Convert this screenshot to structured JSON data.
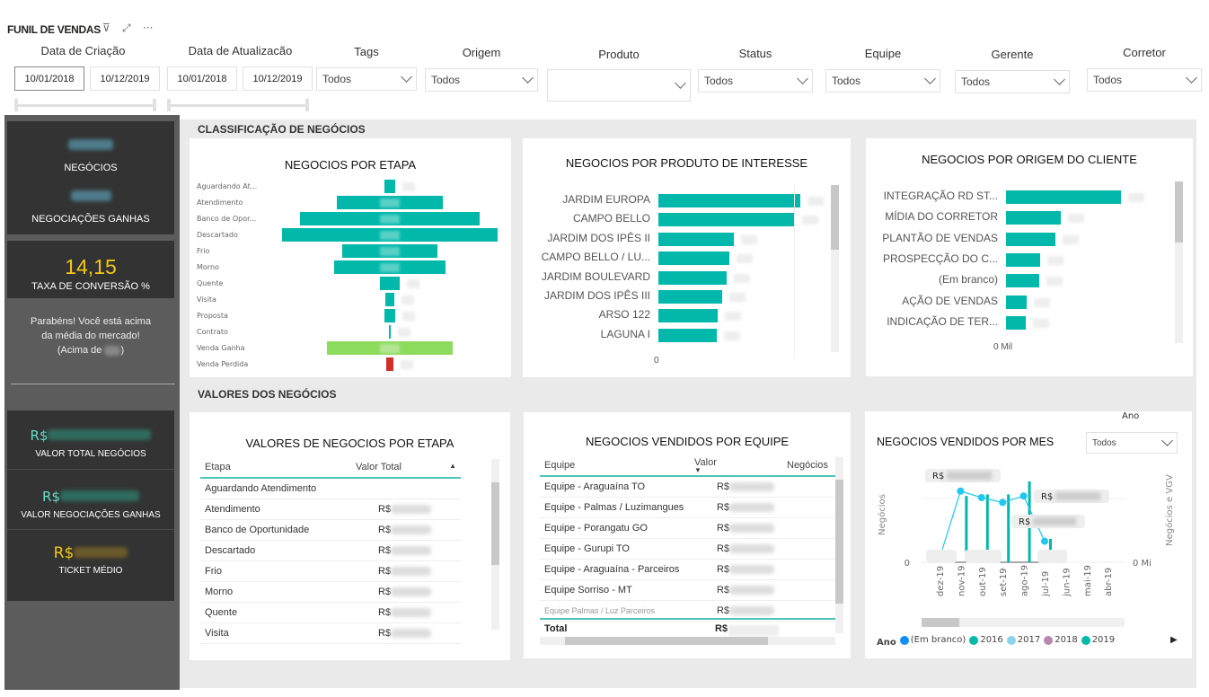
{
  "header": {
    "title": "FUNIL DE VENDAS",
    "icons": [
      "filter-icon",
      "focus-mode-icon",
      "more-options-icon"
    ]
  },
  "filters": {
    "data_criacao": {
      "label": "Data de Criação",
      "start": "10/01/2018",
      "end": "10/12/2019"
    },
    "data_atualizacao": {
      "label": "Data de Atualizacão",
      "start": "10/01/2018",
      "end": "10/12/2019"
    },
    "tags": {
      "label": "Tags",
      "value": "Todos"
    },
    "origem": {
      "label": "Origem",
      "value": "Todos"
    },
    "produto": {
      "label": "Produto",
      "value": ""
    },
    "status": {
      "label": "Status",
      "value": "Todos"
    },
    "equipe": {
      "label": "Equipe",
      "value": "Todos"
    },
    "gerente": {
      "label": "Gerente",
      "value": "Todos"
    },
    "corretor": {
      "label": "Corretor",
      "value": "Todos"
    }
  },
  "kpis": {
    "negocios_label": "NEGÓCIOS",
    "ganhas_label": "NEGOCIAÇÕES GANHAS",
    "taxa_value": "14,15",
    "taxa_label": "TAXA DE CONVERSÃO %",
    "msg_line1": "Parabéns! Você está acima",
    "msg_line2": "da média do mercado!",
    "msg_pre": "(Acima de ",
    "msg_post": ")",
    "currency": "R$",
    "valor_total_label": "VALOR TOTAL NEGÓCIOS",
    "valor_ganhas_label": "VALOR NEGOCIAÇÕES GANHAS",
    "ticket_label": "TICKET MÉDIO",
    "colors": {
      "teal": "#5fe0c8",
      "gold": "#f2c811"
    }
  },
  "sections": {
    "classificacao": "CLASSIFICAÇÃO DE NEGÓCIOS",
    "valores": "VALORES DOS NEGÓCIOS"
  },
  "funnel": {
    "title": "NEGOCIOS POR ETAPA",
    "stages": [
      {
        "label": "Aguardando At...",
        "rel": 5,
        "color": "#01b8aa"
      },
      {
        "label": "Atendimento",
        "rel": 49,
        "color": "#01b8aa"
      },
      {
        "label": "Banco de Opor...",
        "rel": 83,
        "color": "#01b8aa"
      },
      {
        "label": "Descartado",
        "rel": 100,
        "color": "#01b8aa"
      },
      {
        "label": "Frio",
        "rel": 44,
        "color": "#01b8aa"
      },
      {
        "label": "Morno",
        "rel": 52,
        "color": "#01b8aa"
      },
      {
        "label": "Quente",
        "rel": 9,
        "color": "#01b8aa"
      },
      {
        "label": "Visita",
        "rel": 4,
        "color": "#01b8aa"
      },
      {
        "label": "Proposta",
        "rel": 5,
        "color": "#01b8aa"
      },
      {
        "label": "Contrato",
        "rel": 1,
        "color": "#01b8aa"
      },
      {
        "label": "Venda Ganha",
        "rel": 58,
        "color": "#8ddb5d"
      },
      {
        "label": "Venda Perdida",
        "rel": 3,
        "color": "#d02e28"
      }
    ]
  },
  "produto": {
    "title": "NEGOCIOS POR PRODUTO DE INTERESSE",
    "axis_zero": "0",
    "items": [
      {
        "label": "JARDIM EUROPA",
        "rel": 100
      },
      {
        "label": "CAMPO BELLO",
        "rel": 96
      },
      {
        "label": "JARDIM DOS IPÊS II",
        "rel": 53
      },
      {
        "label": "CAMPO BELLO / LU...",
        "rel": 50
      },
      {
        "label": "JARDIM BOULEVARD",
        "rel": 48
      },
      {
        "label": "JARDIM DOS IPÊS III",
        "rel": 45
      },
      {
        "label": "ARSO 122",
        "rel": 42
      },
      {
        "label": "LAGUNA I",
        "rel": 41
      }
    ]
  },
  "origem_chart": {
    "title": "NEGOCIOS POR ORIGEM DO CLIENTE",
    "axis_zero": "0 Mil",
    "items": [
      {
        "label": "INTEGRAÇÃO RD ST...",
        "rel": 100
      },
      {
        "label": "MÍDIA DO CORRETOR",
        "rel": 48
      },
      {
        "label": "PLANTÃO DE VENDAS",
        "rel": 43
      },
      {
        "label": "PROSPECÇÃO DO C...",
        "rel": 30
      },
      {
        "label": "(Em branco)",
        "rel": 29
      },
      {
        "label": "AÇÃO DE VENDAS",
        "rel": 18
      },
      {
        "label": "INDICAÇÃO DE TER...",
        "rel": 17
      }
    ]
  },
  "valores_etapa": {
    "title": "VALORES DE NEGOCIOS POR ETAPA",
    "columns": [
      "Etapa",
      "Valor Total"
    ],
    "rows": [
      {
        "etapa": "Aguardando Atendimento",
        "valor": ""
      },
      {
        "etapa": "Atendimento",
        "valor": "R$"
      },
      {
        "etapa": "Banco de Oportunidade",
        "valor": "R$"
      },
      {
        "etapa": "Descartado",
        "valor": "R$"
      },
      {
        "etapa": "Frio",
        "valor": "R$"
      },
      {
        "etapa": "Morno",
        "valor": "R$"
      },
      {
        "etapa": "Quente",
        "valor": "R$"
      },
      {
        "etapa": "Visita",
        "valor": "R$"
      }
    ]
  },
  "equipe": {
    "title": "NEGOCIOS VENDIDOS POR EQUIPE",
    "columns": [
      "Equipe",
      "Valor",
      "Negócios"
    ],
    "rows": [
      {
        "equipe": "Equipe - Araguaína TO",
        "valor": "R$"
      },
      {
        "equipe": "Equipe - Palmas / Luzimangues",
        "valor": "R$"
      },
      {
        "equipe": "Equipe - Porangatu GO",
        "valor": "R$"
      },
      {
        "equipe": "Equipe - Gurupi TO",
        "valor": "R$"
      },
      {
        "equipe": "Equipe - Araguaína - Parceiros",
        "valor": "R$"
      },
      {
        "equipe": "Equipe Sorriso - MT",
        "valor": "R$"
      },
      {
        "equipe": "Equipe Palmas / Luz Parceiros",
        "valor": "R$"
      }
    ],
    "total_label": "Total",
    "total_valor": "R$"
  },
  "mes": {
    "title": "NEGOCIOS VENDIDOS POR MES",
    "ano_filter": {
      "label": "Ano",
      "value": "Todos"
    },
    "chart_data": {
      "type": "bar+line",
      "categories": [
        "dez-19",
        "nov-19",
        "out-19",
        "set-19",
        "ago-19",
        "jul-19",
        "jun-19",
        "mai-19",
        "abr-19"
      ],
      "bars_rel": [
        5,
        82,
        84,
        84,
        100,
        29,
        0,
        0,
        0
      ],
      "line_rel": [
        5,
        88,
        80,
        74,
        82,
        26,
        null,
        null,
        null
      ],
      "ylabel_left": "Negócios",
      "ylabel_right": "Negócios e VGV",
      "y_left_zero": "0",
      "y_right_zero": "0 Mi",
      "data_label_prefix": "R$",
      "bar_color": "#01b8aa",
      "line_color": "#1ec8f0"
    },
    "legend": {
      "title": "Ano",
      "items": [
        {
          "label": "(Em branco)",
          "color": "#118dff"
        },
        {
          "label": "2016",
          "color": "#01b8aa"
        },
        {
          "label": "2017",
          "color": "#8ad4eb"
        },
        {
          "label": "2018",
          "color": "#b887ad"
        },
        {
          "label": "2019",
          "color": "#01b8aa"
        }
      ]
    }
  }
}
